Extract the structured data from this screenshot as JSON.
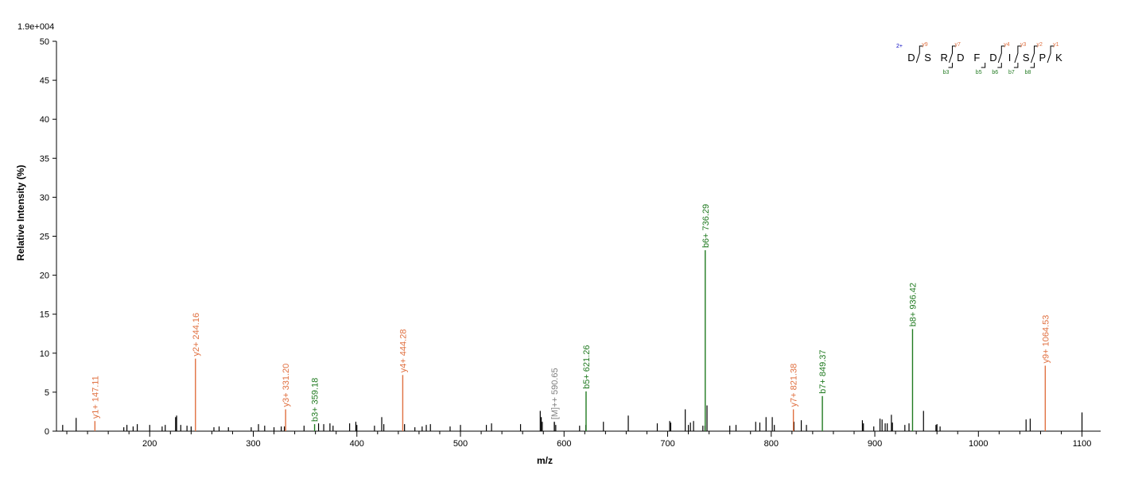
{
  "chart_data": {
    "type": "bar",
    "scale_label": "1.9e+004",
    "xlabel": "m/z",
    "ylabel": "Relative   Intensity (%)",
    "xlim": [
      110,
      1118
    ],
    "ylim": [
      0,
      50
    ],
    "x_ticks": [
      200,
      300,
      400,
      500,
      600,
      700,
      800,
      900,
      1000,
      1100
    ],
    "y_ticks": [
      0,
      5,
      10,
      15,
      20,
      25,
      30,
      35,
      40,
      45,
      50
    ],
    "colors": {
      "y_ion": "#e07040",
      "b_ion": "#207a20",
      "precursor": "#808080",
      "noise": "#000000",
      "charge": "#0000c0"
    },
    "annotated_peaks": [
      {
        "mz": 147.11,
        "intensity": 1.3,
        "label": "y1+ 147.11",
        "ion": "y"
      },
      {
        "mz": 244.16,
        "intensity": 9.3,
        "label": "y2+ 244.16",
        "ion": "y"
      },
      {
        "mz": 331.2,
        "intensity": 2.8,
        "label": "y3+ 331.20",
        "ion": "y"
      },
      {
        "mz": 359.18,
        "intensity": 0.9,
        "label": "b3+ 359.18",
        "ion": "b"
      },
      {
        "mz": 444.28,
        "intensity": 7.2,
        "label": "y4+ 444.28",
        "ion": "y"
      },
      {
        "mz": 590.65,
        "intensity": 1.2,
        "label": "[M]++ 590.65",
        "ion": "precursor"
      },
      {
        "mz": 621.26,
        "intensity": 5.1,
        "label": "b5+ 621.26",
        "ion": "b"
      },
      {
        "mz": 736.29,
        "intensity": 23.2,
        "label": "b6+ 736.29",
        "ion": "b"
      },
      {
        "mz": 821.38,
        "intensity": 2.8,
        "label": "y7+ 821.38",
        "ion": "y"
      },
      {
        "mz": 849.37,
        "intensity": 4.5,
        "label": "b7+ 849.37",
        "ion": "b"
      },
      {
        "mz": 936.42,
        "intensity": 13.1,
        "label": "b8+ 936.42",
        "ion": "b"
      },
      {
        "mz": 1064.53,
        "intensity": 8.4,
        "label": "y9+ 1064.53",
        "ion": "y"
      }
    ],
    "noise_peaks": [
      [
        116,
        0.8
      ],
      [
        129,
        1.7
      ],
      [
        175,
        0.5
      ],
      [
        178,
        0.8
      ],
      [
        184,
        0.6
      ],
      [
        188,
        0.9
      ],
      [
        200,
        0.8
      ],
      [
        212,
        0.6
      ],
      [
        215,
        0.8
      ],
      [
        225,
        1.8
      ],
      [
        226,
        2.0
      ],
      [
        230,
        0.8
      ],
      [
        236,
        0.7
      ],
      [
        240,
        0.6
      ],
      [
        262,
        0.5
      ],
      [
        267,
        0.6
      ],
      [
        276,
        0.5
      ],
      [
        298,
        0.5
      ],
      [
        305,
        0.9
      ],
      [
        311,
        0.7
      ],
      [
        320,
        0.5
      ],
      [
        327,
        0.6
      ],
      [
        330,
        0.6
      ],
      [
        349,
        0.7
      ],
      [
        363,
        1.0
      ],
      [
        368,
        0.9
      ],
      [
        374,
        1.0
      ],
      [
        377,
        0.7
      ],
      [
        393,
        1.0
      ],
      [
        399,
        1.2
      ],
      [
        400,
        0.8
      ],
      [
        417,
        0.7
      ],
      [
        424,
        1.8
      ],
      [
        426,
        0.9
      ],
      [
        446,
        0.9
      ],
      [
        456,
        0.5
      ],
      [
        463,
        0.6
      ],
      [
        467,
        0.8
      ],
      [
        471,
        0.9
      ],
      [
        490,
        0.6
      ],
      [
        500,
        0.8
      ],
      [
        525,
        0.8
      ],
      [
        530,
        1.0
      ],
      [
        558,
        0.9
      ],
      [
        577,
        2.6
      ],
      [
        578,
        1.8
      ],
      [
        579,
        1.2
      ],
      [
        592,
        0.8
      ],
      [
        615,
        0.7
      ],
      [
        621,
        0.8
      ],
      [
        638,
        1.2
      ],
      [
        662,
        2.0
      ],
      [
        690,
        1.0
      ],
      [
        702,
        1.3
      ],
      [
        703,
        1.1
      ],
      [
        717,
        2.8
      ],
      [
        720,
        0.8
      ],
      [
        722,
        1.1
      ],
      [
        725,
        1.3
      ],
      [
        734,
        0.7
      ],
      [
        736,
        0.7
      ],
      [
        738,
        3.3
      ],
      [
        760,
        0.7
      ],
      [
        766,
        0.8
      ],
      [
        785,
        1.2
      ],
      [
        789,
        1.1
      ],
      [
        795,
        1.8
      ],
      [
        801,
        1.8
      ],
      [
        803,
        0.8
      ],
      [
        822,
        1.2
      ],
      [
        829,
        1.4
      ],
      [
        834,
        0.8
      ],
      [
        888,
        1.4
      ],
      [
        889,
        1.0
      ],
      [
        899,
        0.6
      ],
      [
        905,
        1.6
      ],
      [
        907,
        1.5
      ],
      [
        910,
        1.0
      ],
      [
        912,
        1.0
      ],
      [
        916,
        2.1
      ],
      [
        917,
        1.1
      ],
      [
        929,
        0.8
      ],
      [
        933,
        1.0
      ],
      [
        947,
        2.6
      ],
      [
        959,
        0.8
      ],
      [
        960,
        0.9
      ],
      [
        963,
        0.6
      ],
      [
        1046,
        1.5
      ],
      [
        1050,
        1.6
      ],
      [
        1100,
        2.4
      ]
    ],
    "sequence": {
      "charge": "2+",
      "residues": [
        "D",
        "S",
        "R",
        "D",
        "F",
        "D",
        "I",
        "S",
        "P",
        "K"
      ],
      "y_ions": [
        {
          "after": 1,
          "label": "y9"
        },
        {
          "after": 3,
          "label": "y7"
        },
        {
          "after": 6,
          "label": "y4"
        },
        {
          "after": 7,
          "label": "y3"
        },
        {
          "after": 8,
          "label": "y2"
        },
        {
          "after": 9,
          "label": "y1"
        }
      ],
      "b_ions": [
        {
          "after": 3,
          "label": "b3"
        },
        {
          "after": 5,
          "label": "b5"
        },
        {
          "after": 6,
          "label": "b6"
        },
        {
          "after": 7,
          "label": "b7"
        },
        {
          "after": 8,
          "label": "b8"
        }
      ]
    }
  }
}
